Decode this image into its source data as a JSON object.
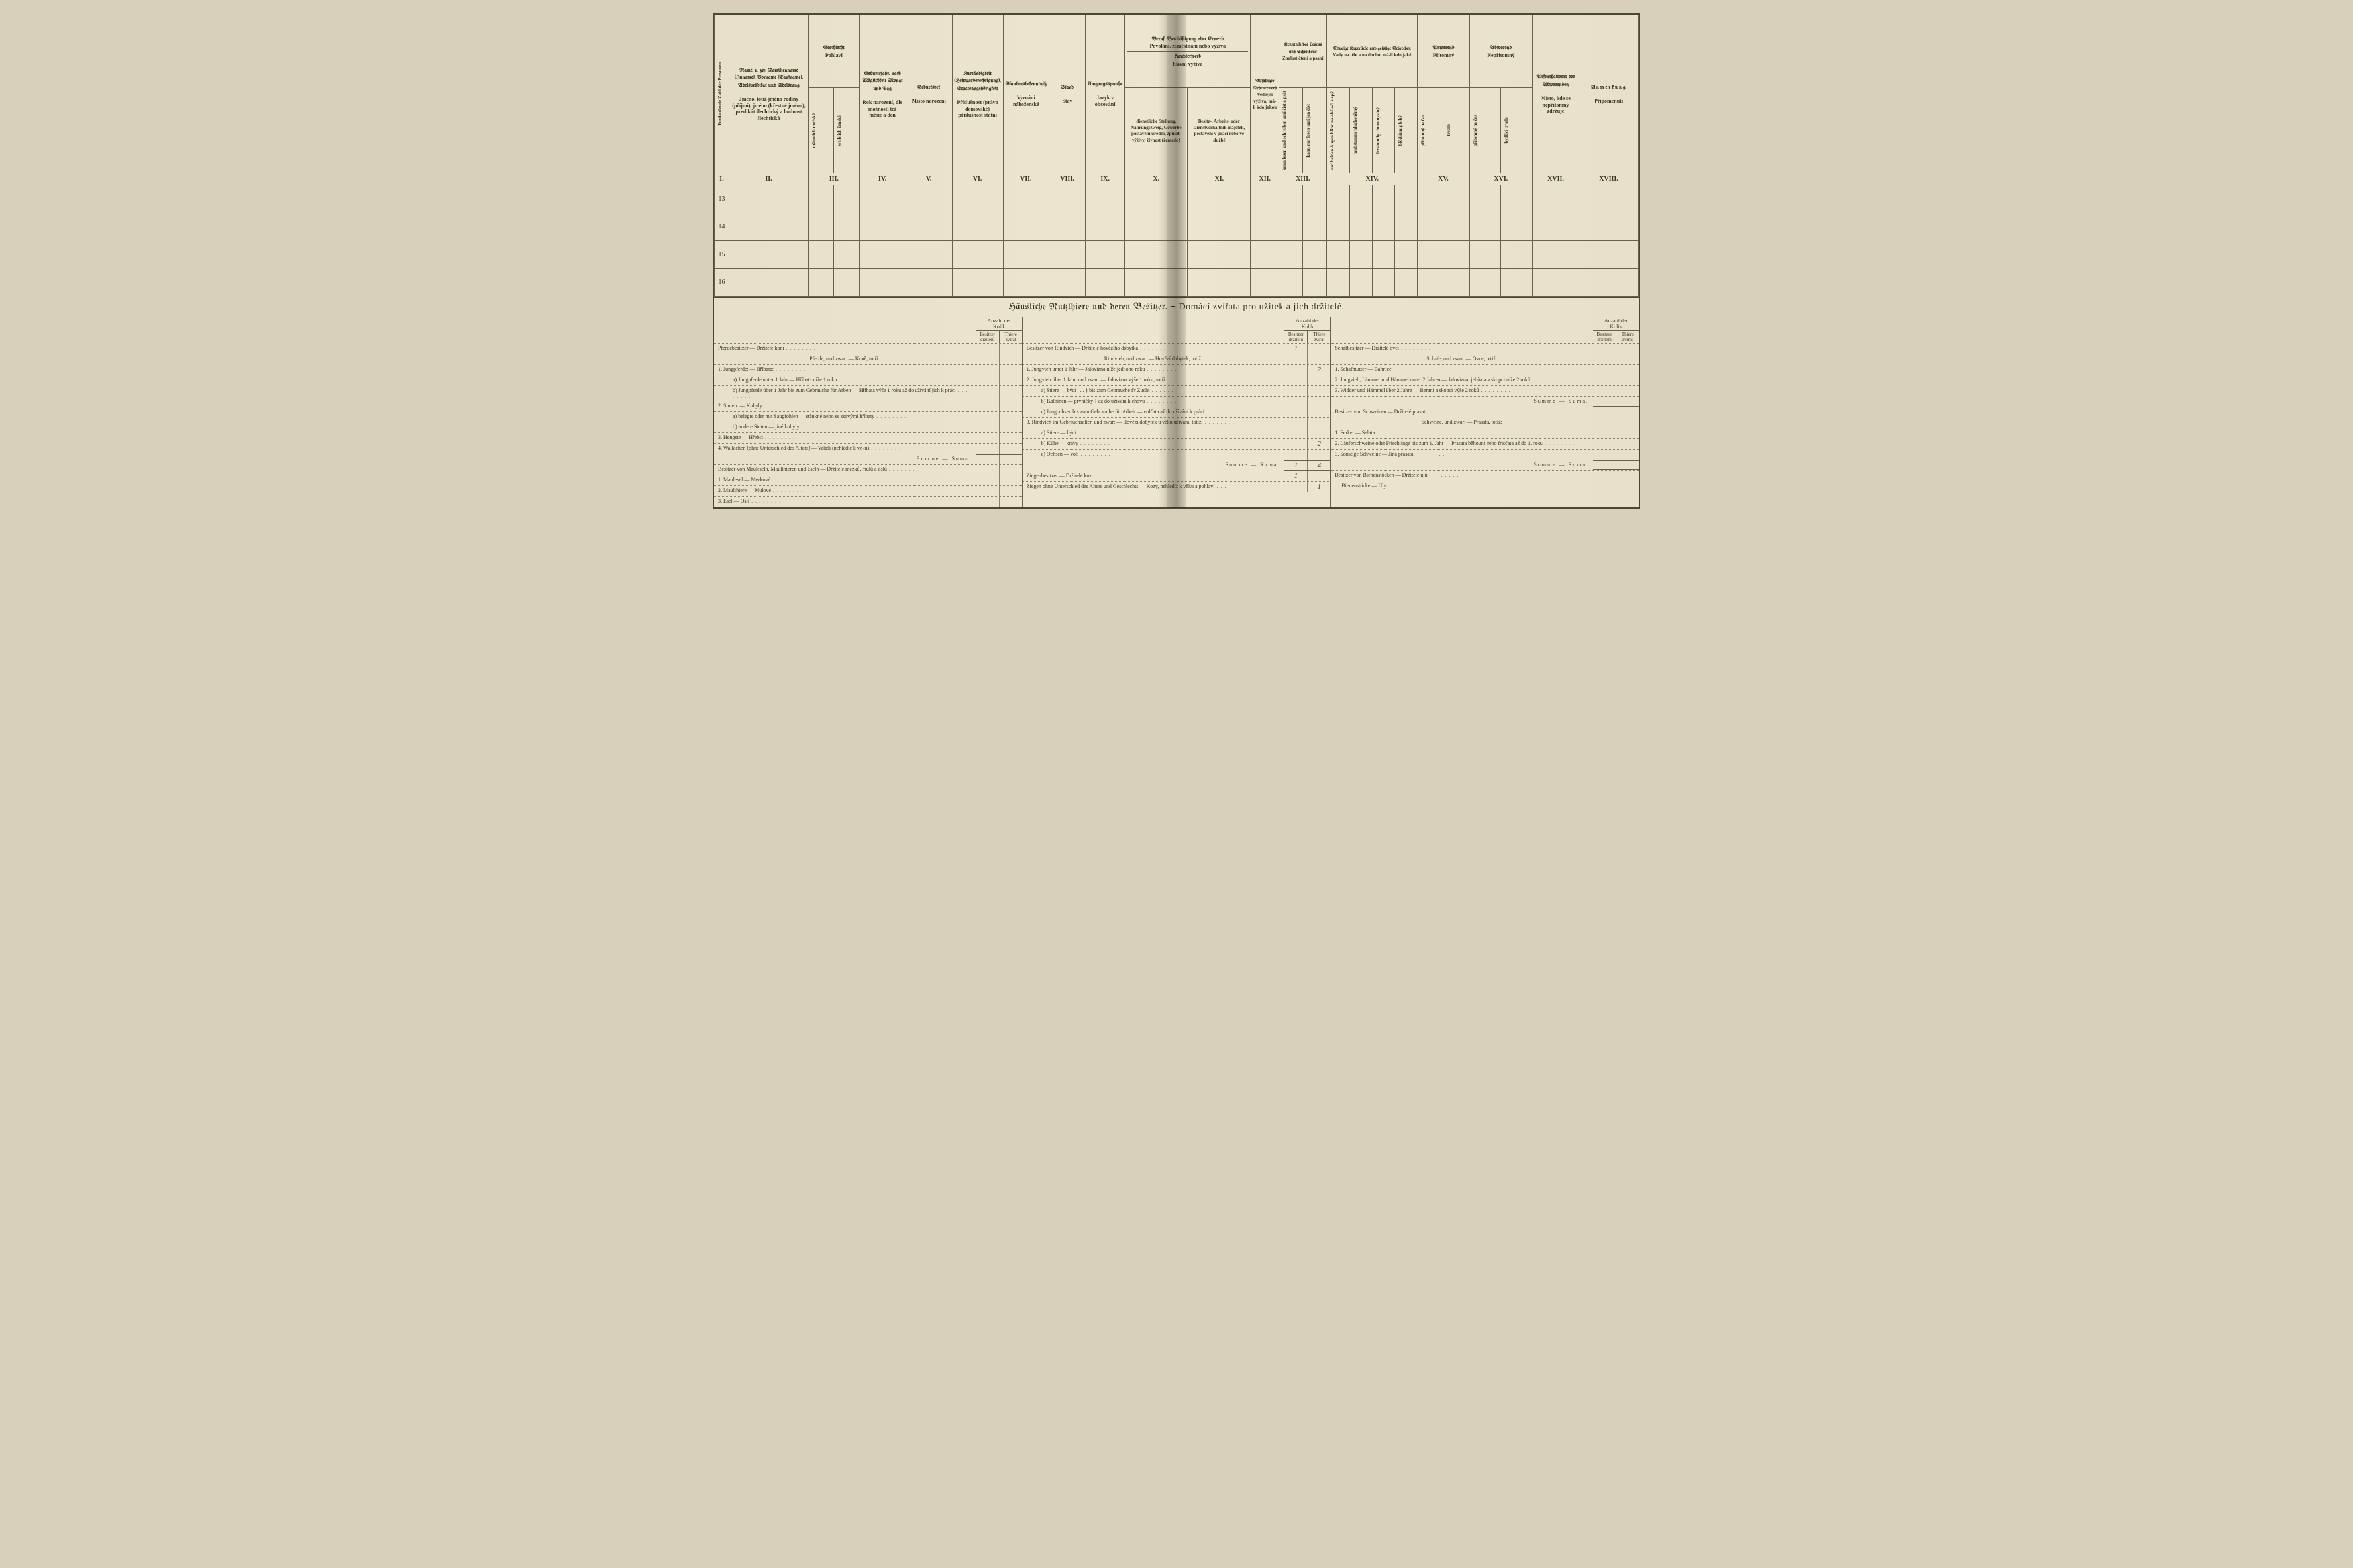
{
  "upper_table": {
    "col_headers": [
      {
        "roman": "I.",
        "de": "Fortlaufende Zahl der Personen",
        "cz": "Počet jejich čísel osob",
        "vertical": true
      },
      {
        "roman": "II.",
        "de": "Name,\nu. zw. Familienname (Zuname), Vorname (Taufname), Adelsprädikat und Adelsrang",
        "cz": "Jméno,\ntotíž jméno rodiny (příjmí), jméno (křestné jméno), predikát šlechtický a hodnost šlechtická"
      },
      {
        "roman": "III.",
        "de": "Geschlecht",
        "cz": "Pohlaví",
        "sub": [
          "männlich mužské",
          "weiblich ženské"
        ]
      },
      {
        "roman": "IV.",
        "de": "Geburtsjahr, nach Möglichkeit Monat und Tag",
        "cz": "Rok narození, dle možnosti též měsíc a den"
      },
      {
        "roman": "V.",
        "de": "Geburtsort",
        "cz": "Místo narození"
      },
      {
        "roman": "VI.",
        "de": "Zuständigkeit (Heimatsberechtigung), Staatsangehörigkeit",
        "cz": "Příslušnost (právo domovské) příslušnost státní"
      },
      {
        "roman": "VII.",
        "de": "Glaubensbekenntniß",
        "cz": "Vyznání náboženské"
      },
      {
        "roman": "VIII.",
        "de": "Stand",
        "cz": "Stav"
      },
      {
        "roman": "IX.",
        "de": "Umgangssprache",
        "cz": "Jazyk v obcování"
      },
      {
        "roman": "X.",
        "de": "dienstliche Stellung, Nahrungszweig, Gewerbe\npostavení úřední, způsob výživy, živnost (řemeslo)"
      },
      {
        "roman": "XI.",
        "de": "Besitz-, Arbeits- oder Dienstverhältniß\nmajetek, postavení v práci nebo ve službě"
      },
      {
        "roman": "XII.",
        "de": "Allfälliger Nebenerwerb",
        "cz": "Vedlejší výživa, má-li kdo jakou",
        "vertical_sub": true
      },
      {
        "roman": "XIII.",
        "de": "Kenntniß des Lesens und Schreibens",
        "cz": "Znalost čtení a psaní",
        "sub_vert": [
          "kann lesen und schreiben\numí číst a psát",
          "kann nur lesen\numí jen číst"
        ]
      },
      {
        "roman": "XIV.",
        "de": "Etwaige körperliche und geistige Gebrechen",
        "cz": "Vady na těle a na duchu, má-li kdo jaké",
        "sub_vert": [
          "auf beiden Augen blind\nna obě oči slepý",
          "taubstumm\nhluchoněmý",
          "irrsinnnig\nchoromyslný",
          "blödsinnig\nblbý"
        ]
      },
      {
        "roman": "XV.",
        "de": "Anwesend",
        "cz": "Přítomný",
        "sub_vert": [
          "přítomný\nna čas",
          "trvale"
        ]
      },
      {
        "roman": "XVI.",
        "de": "Abwesend",
        "cz": "Nepřítomný",
        "sub_vert": [
          "přítomný\nna čas",
          "bydlící\ntrvale"
        ]
      },
      {
        "roman": "XVII.",
        "de": "Aufenthaltsort des Abwesenden",
        "cz": "Místo, kde se nepřítomný zdržuje"
      },
      {
        "roman": "XVIII.",
        "de": "Anmerkung",
        "cz": "Připomenutí"
      }
    ],
    "group_X_XI_title_de": "Beruf, Beschäftigung oder Erwerb",
    "group_X_XI_title_cz": "Povolání, zaměstnání nebo výživa",
    "group_X_XI_sub_de": "Haupterwerb",
    "group_X_XI_sub_cz": "hlavní výživa",
    "row_numbers": [
      "13",
      "14",
      "15",
      "16"
    ]
  },
  "livestock": {
    "section_title_de": "Häusliche Nutzthiere und deren Besitzer.",
    "section_title_sep": "—",
    "section_title_cz": "Domácí zvířata pro užitek a jich držitelé.",
    "count_header": {
      "top": "Anzahl der\nKolik",
      "left": "Besitzer\ndržitelů",
      "right": "Thiere\nzvířat"
    },
    "col1": {
      "owner": "Pferdebesitzer — Držitelé koní",
      "sub": "Pferde, und zwar: — Koně, totiž:",
      "items": [
        {
          "n": "1.",
          "t": "Jungpferde: — Hříbata:"
        },
        {
          "ind": 2,
          "t": "a) Jungpferde unter 1 Jahr — Hříbata níže 1 roku"
        },
        {
          "ind": 2,
          "t": "b) Jungpferde über 1 Jahr bis zum Gebrauche für Arbeit — Hříbata výše 1 roku až do užívání jich k práci"
        },
        {
          "n": "2.",
          "t": "Stuten: — Kobyly:"
        },
        {
          "ind": 2,
          "t": "a) belegte oder mit Saugfohlen — stěnkné nebo se ssavými hříbaty"
        },
        {
          "ind": 2,
          "t": "b) andere Stuten — jiné kobyly"
        },
        {
          "n": "3.",
          "t": "Hengste — Hřebci"
        },
        {
          "n": "4.",
          "t": "Wallachen (ohne Unterschied des Alters) — Valaši (nehledíc k věku)"
        }
      ],
      "summe": "Summe — Suma.",
      "owner2": "Besitzer von Mauleseln, Maulthieren und Eseln — Držitelé mezků, mulů a oslů",
      "items2": [
        {
          "n": "1.",
          "t": "Maulesel — Mezkové"
        },
        {
          "n": "2.",
          "t": "Maulthiere — Mulové"
        },
        {
          "n": "3.",
          "t": "Esel — Osli"
        }
      ]
    },
    "col2": {
      "owner": "Besitzer von Rindvieh — Držitelé hovězího dobytka",
      "owner_v": {
        "b": "1",
        "t": ""
      },
      "sub": "Rindvieh, und zwar: — Hovězí dobytek, totiž:",
      "items": [
        {
          "n": "1.",
          "t": "Jungvieh unter 1 Jahr — Jalovizna níže jednoho roku",
          "v": {
            "b": "",
            "t": "2"
          }
        },
        {
          "n": "2.",
          "t": "Jungvieh über 1 Jahr, und zwar: — Jalovizna výše 1 roku, totiž:"
        },
        {
          "ind": 2,
          "t": "a) Stiere — býci . . . } bis zum Gebrauche f'r Zucht"
        },
        {
          "ind": 2,
          "t": "b) Kalbinen — prvničky } až do užívání k chovu"
        },
        {
          "ind": 2,
          "t": "c) Jungochsen bis zum Gebrauche für Arbeit — volčata až do užívání k práci"
        },
        {
          "n": "3.",
          "t": "Rindvieh im Gebrauchsalter, und zwar: — Hovězí dobytek u věku užívání, totiž:"
        },
        {
          "ind": 2,
          "t": "a) Stiere — býci"
        },
        {
          "ind": 2,
          "t": "b) Kühe — krávy",
          "v": {
            "b": "",
            "t": "2"
          }
        },
        {
          "ind": 2,
          "t": "c) Ochsen — voli"
        }
      ],
      "summe": "Summe — Suma.",
      "summe_v": {
        "b": "1",
        "t": "4"
      },
      "owner2": "Ziegenbesitzer — Držitelé koz",
      "owner2_v": {
        "b": "1",
        "t": ""
      },
      "items2": [
        {
          "t": "Ziegen ohne Unterschied des Alters und Geschlechts — Kozy, nehledíc k věku a pohlaví",
          "v": {
            "b": "",
            "t": "1"
          }
        }
      ]
    },
    "col3": {
      "owner": "Schafbesitzer — Držitelé ovcí",
      "sub": "Schafe, und zwar: — Ovce, totiž:",
      "items": [
        {
          "n": "1.",
          "t": "Schafmutter — Bahnice"
        },
        {
          "n": "2.",
          "t": "Jungvieh, Lämmer und Hämmel unter 2 Jahren — Jalovizna, jehňata a skopci níže 2 roků"
        },
        {
          "n": "3.",
          "t": "Widder und Hämmel über 2 Jahre — Berani a skopci výše 2 roků"
        }
      ],
      "summe": "Summe — Suma.",
      "owner2": "Besitzer von Schweinen — Držitelé prasat",
      "sub2": "Schweine, und zwar: — Prasata, totiž:",
      "items2": [
        {
          "n": "1.",
          "t": "Ferkel — Selata"
        },
        {
          "n": "2.",
          "t": "Läuferschweine oder Frischlinge bis zum 1. Jahr — Prasata běhouni nebo frisčata až do 1. roku"
        },
        {
          "n": "3.",
          "t": "Sonstige Schweine — Jiná prasata"
        }
      ],
      "summe2": "Summe — Suma.",
      "owner3": "Besitzer von Bienenstöcken — Držitelé úlů",
      "items3": [
        {
          "t": "Bienenstöcke — Úly"
        }
      ],
      "smallbox": {
        "h1": "Besitzer noch Besizern",
        "h2": "Summe noch Thr."
      }
    }
  }
}
